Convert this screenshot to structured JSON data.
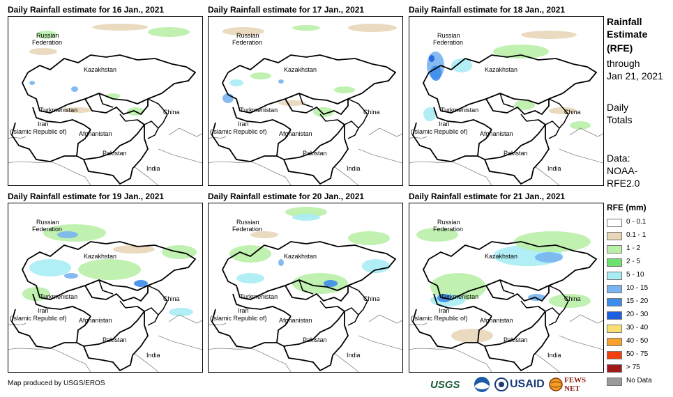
{
  "panels": [
    {
      "title": "Daily Rainfall estimate for 16 Jan., 2021"
    },
    {
      "title": "Daily Rainfall estimate for 17 Jan., 2021"
    },
    {
      "title": "Daily Rainfall estimate for 18 Jan., 2021"
    },
    {
      "title": "Daily Rainfall estimate for 19 Jan., 2021"
    },
    {
      "title": "Daily Rainfall estimate for 20 Jan., 2021"
    },
    {
      "title": "Daily Rainfall estimate for 21 Jan., 2021"
    }
  ],
  "country_labels": {
    "russia_1": "Russian",
    "russia_2": "Federation",
    "kazakhstan": "Kazakhstan",
    "turkmenistan": "Turkmenistan",
    "iran_1": "Iran",
    "iran_2": "(Islamic Republic of)",
    "afghanistan": "Afghanistan",
    "pakistan": "Pakistan",
    "china": "China",
    "india": "India"
  },
  "side_info": {
    "title_1": "Rainfall",
    "title_2": "Estimate",
    "title_3": "(RFE)",
    "through": "through",
    "date": "Jan 21, 2021",
    "daily_1": "Daily",
    "daily_2": "Totals",
    "data_1": "Data:",
    "data_2": "NOAA-",
    "data_3": "RFE2.0"
  },
  "legend": {
    "title": "RFE (mm)",
    "items": [
      {
        "label": "0 - 0.1",
        "color": "#ffffff"
      },
      {
        "label": "0.1 - 1",
        "color": "#e8d6b8"
      },
      {
        "label": "1 - 2",
        "color": "#b9f0a8"
      },
      {
        "label": "2 - 5",
        "color": "#6ee26e"
      },
      {
        "label": "5 - 10",
        "color": "#a8ecf4"
      },
      {
        "label": "10 - 15",
        "color": "#78b4f0"
      },
      {
        "label": "15 - 20",
        "color": "#3c8cec"
      },
      {
        "label": "20 - 30",
        "color": "#1e5fe0"
      },
      {
        "label": "30 - 40",
        "color": "#f8e070"
      },
      {
        "label": "40 - 50",
        "color": "#f8a030"
      },
      {
        "label": "50 - 75",
        "color": "#f04010"
      },
      {
        "label": "> 75",
        "color": "#a01818"
      },
      {
        "label": "No Data",
        "color": "#9a9a9a"
      }
    ]
  },
  "credit": "Map produced by USGS/EROS",
  "logos": {
    "usgs": "USGS",
    "usaid": "USAID",
    "fews": "FEWS NET"
  }
}
